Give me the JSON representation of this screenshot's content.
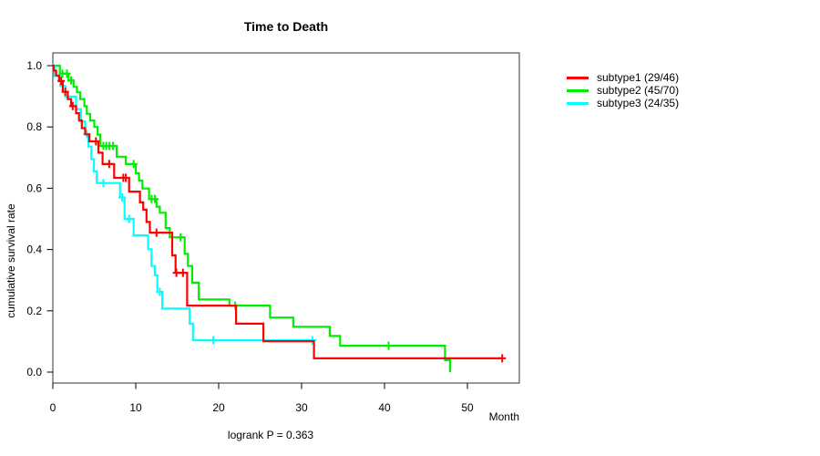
{
  "title": "Time to Death",
  "axes": {
    "y_label": "cumulative survival rate",
    "x_label": "Month"
  },
  "footnote": "logrank P = 0.363",
  "chart_data": {
    "type": "line",
    "subtype": "kaplan-meier-step-curves",
    "title": "Time to Death",
    "xlabel": "Month",
    "ylabel": "cumulative survival rate",
    "annotation": "logrank P = 0.363",
    "xlim": [
      0,
      56.3
    ],
    "ylim": [
      0,
      1.04
    ],
    "x_ticks": [
      0,
      10,
      20,
      30,
      40,
      50
    ],
    "y_ticks": [
      0.0,
      0.2,
      0.4,
      0.6,
      0.8,
      1.0
    ],
    "grid": false,
    "legend_position": "right-outside",
    "axis_color": "#000000",
    "box_color": "#333333",
    "series": [
      {
        "name": "subtype2",
        "label": "subtype2 (45/70)",
        "color": "#00EE00",
        "n": 70,
        "events": 45,
        "steps": [
          [
            0,
            1.0
          ],
          [
            0.85,
            0.974
          ],
          [
            1.9,
            0.952
          ],
          [
            2.5,
            0.931
          ],
          [
            2.9,
            0.913
          ],
          [
            3.3,
            0.891
          ],
          [
            3.8,
            0.868
          ],
          [
            4.1,
            0.843
          ],
          [
            4.5,
            0.821
          ],
          [
            5.0,
            0.8
          ],
          [
            5.4,
            0.775
          ],
          [
            5.7,
            0.738
          ],
          [
            7.7,
            0.703
          ],
          [
            8.8,
            0.679
          ],
          [
            10.0,
            0.649
          ],
          [
            10.4,
            0.625
          ],
          [
            10.8,
            0.599
          ],
          [
            11.6,
            0.565
          ],
          [
            12.5,
            0.54
          ],
          [
            12.9,
            0.52
          ],
          [
            13.6,
            0.47
          ],
          [
            14.1,
            0.44
          ],
          [
            15.9,
            0.386
          ],
          [
            16.3,
            0.346
          ],
          [
            16.8,
            0.292
          ],
          [
            17.6,
            0.237
          ],
          [
            21.3,
            0.217
          ],
          [
            26.2,
            0.178
          ],
          [
            29.0,
            0.148
          ],
          [
            33.4,
            0.118
          ],
          [
            34.65,
            0.086
          ],
          [
            47.3,
            0.039
          ],
          [
            47.9,
            0.0
          ]
        ],
        "end_month": 47.9,
        "censors": [
          [
            1.15,
            0.974
          ],
          [
            1.7,
            0.974
          ],
          [
            2.2,
            0.952
          ],
          [
            6.1,
            0.738
          ],
          [
            6.45,
            0.738
          ],
          [
            6.8,
            0.738
          ],
          [
            7.25,
            0.738
          ],
          [
            9.75,
            0.679
          ],
          [
            11.9,
            0.565
          ],
          [
            12.3,
            0.565
          ],
          [
            15.4,
            0.44
          ],
          [
            22.0,
            0.217
          ],
          [
            40.5,
            0.086
          ]
        ]
      },
      {
        "name": "subtype3",
        "label": "subtype3 (24/35)",
        "color": "#00FFFF",
        "n": 35,
        "events": 24,
        "steps": [
          [
            0,
            1.0
          ],
          [
            0.2,
            0.966
          ],
          [
            0.9,
            0.934
          ],
          [
            1.5,
            0.899
          ],
          [
            2.8,
            0.858
          ],
          [
            3.4,
            0.818
          ],
          [
            3.9,
            0.777
          ],
          [
            4.3,
            0.736
          ],
          [
            4.65,
            0.695
          ],
          [
            4.95,
            0.655
          ],
          [
            5.3,
            0.617
          ],
          [
            8.1,
            0.57
          ],
          [
            8.65,
            0.5
          ],
          [
            9.75,
            0.446
          ],
          [
            11.5,
            0.401
          ],
          [
            11.9,
            0.346
          ],
          [
            12.3,
            0.316
          ],
          [
            12.6,
            0.262
          ],
          [
            13.2,
            0.207
          ],
          [
            16.5,
            0.158
          ],
          [
            16.9,
            0.104
          ]
        ],
        "end_month": 31.5,
        "censors": [
          [
            4.1,
            0.777
          ],
          [
            6.1,
            0.617
          ],
          [
            8.35,
            0.57
          ],
          [
            9.2,
            0.5
          ],
          [
            12.9,
            0.262
          ],
          [
            19.35,
            0.104
          ],
          [
            31.3,
            0.104
          ]
        ]
      },
      {
        "name": "subtype1",
        "label": "subtype1 (29/46)",
        "color": "#FF0000",
        "n": 46,
        "events": 29,
        "steps": [
          [
            0,
            1.0
          ],
          [
            0.1,
            0.984
          ],
          [
            0.4,
            0.968
          ],
          [
            0.75,
            0.95
          ],
          [
            1.2,
            0.915
          ],
          [
            1.8,
            0.891
          ],
          [
            2.2,
            0.868
          ],
          [
            2.8,
            0.845
          ],
          [
            3.15,
            0.821
          ],
          [
            3.5,
            0.796
          ],
          [
            3.9,
            0.776
          ],
          [
            4.4,
            0.753
          ],
          [
            5.5,
            0.716
          ],
          [
            6.0,
            0.679
          ],
          [
            7.4,
            0.634
          ],
          [
            9.2,
            0.589
          ],
          [
            10.5,
            0.554
          ],
          [
            10.9,
            0.53
          ],
          [
            11.3,
            0.49
          ],
          [
            11.7,
            0.455
          ],
          [
            14.4,
            0.381
          ],
          [
            14.8,
            0.324
          ],
          [
            16.2,
            0.217
          ],
          [
            22.1,
            0.158
          ],
          [
            25.4,
            0.101
          ],
          [
            31.5,
            0.045
          ]
        ],
        "end_month": 54.2,
        "censors": [
          [
            1.0,
            0.95
          ],
          [
            1.5,
            0.915
          ],
          [
            2.4,
            0.868
          ],
          [
            5.2,
            0.753
          ],
          [
            6.8,
            0.679
          ],
          [
            8.5,
            0.634
          ],
          [
            8.8,
            0.634
          ],
          [
            12.5,
            0.455
          ],
          [
            14.9,
            0.324
          ],
          [
            15.7,
            0.324
          ],
          [
            54.2,
            0.045
          ]
        ]
      }
    ],
    "legend_order": [
      2,
      0,
      1
    ]
  }
}
